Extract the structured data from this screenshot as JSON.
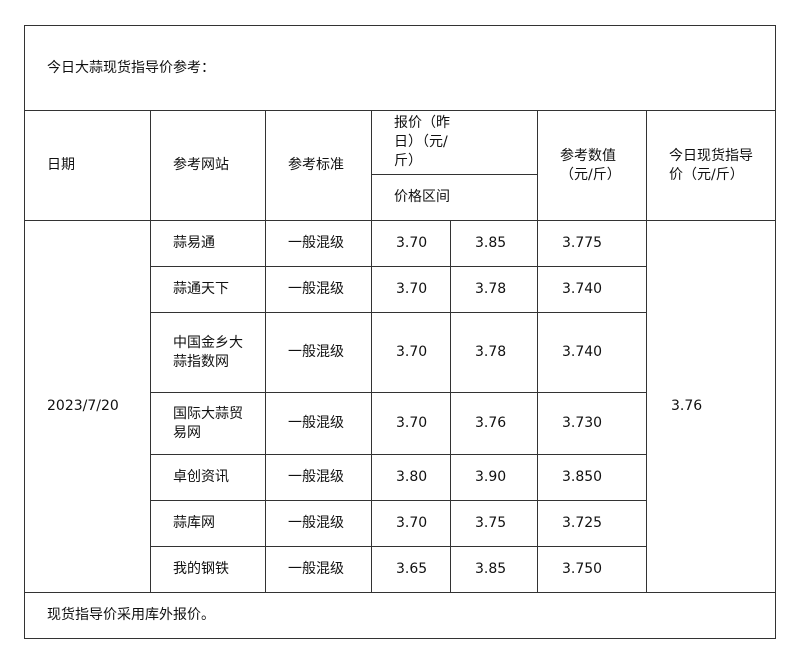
{
  "intro": "今日大蒜现货指导价参考：",
  "headers": {
    "date": "日期",
    "site": "参考网站",
    "standard": "参考标准",
    "quote": "报价（昨日）（元/斤）",
    "range": "价格区间",
    "ref_value": "参考数值（元/斤）",
    "today_price": "今日现货指导价（元/斤）"
  },
  "date": "2023/7/20",
  "today_value": "3.76",
  "rows": [
    {
      "site": "蒜易通",
      "standard": "一般混级",
      "low": "3.70",
      "high": "3.85",
      "ref": "3.775"
    },
    {
      "site": "蒜通天下",
      "standard": "一般混级",
      "low": "3.70",
      "high": "3.78",
      "ref": "3.740"
    },
    {
      "site": "中国金乡大蒜指数网",
      "standard": "一般混级",
      "low": "3.70",
      "high": "3.78",
      "ref": "3.740"
    },
    {
      "site": "国际大蒜贸易网",
      "standard": "一般混级",
      "low": "3.70",
      "high": "3.76",
      "ref": "3.730"
    },
    {
      "site": "卓创资讯",
      "standard": "一般混级",
      "low": "3.80",
      "high": "3.90",
      "ref": "3.850"
    },
    {
      "site": "蒜库网",
      "standard": "一般混级",
      "low": "3.70",
      "high": "3.75",
      "ref": "3.725"
    },
    {
      "site": "我的钢铁",
      "standard": "一般混级",
      "low": "3.65",
      "high": "3.85",
      "ref": "3.750"
    }
  ],
  "footer": "现货指导价采用库外报价。"
}
